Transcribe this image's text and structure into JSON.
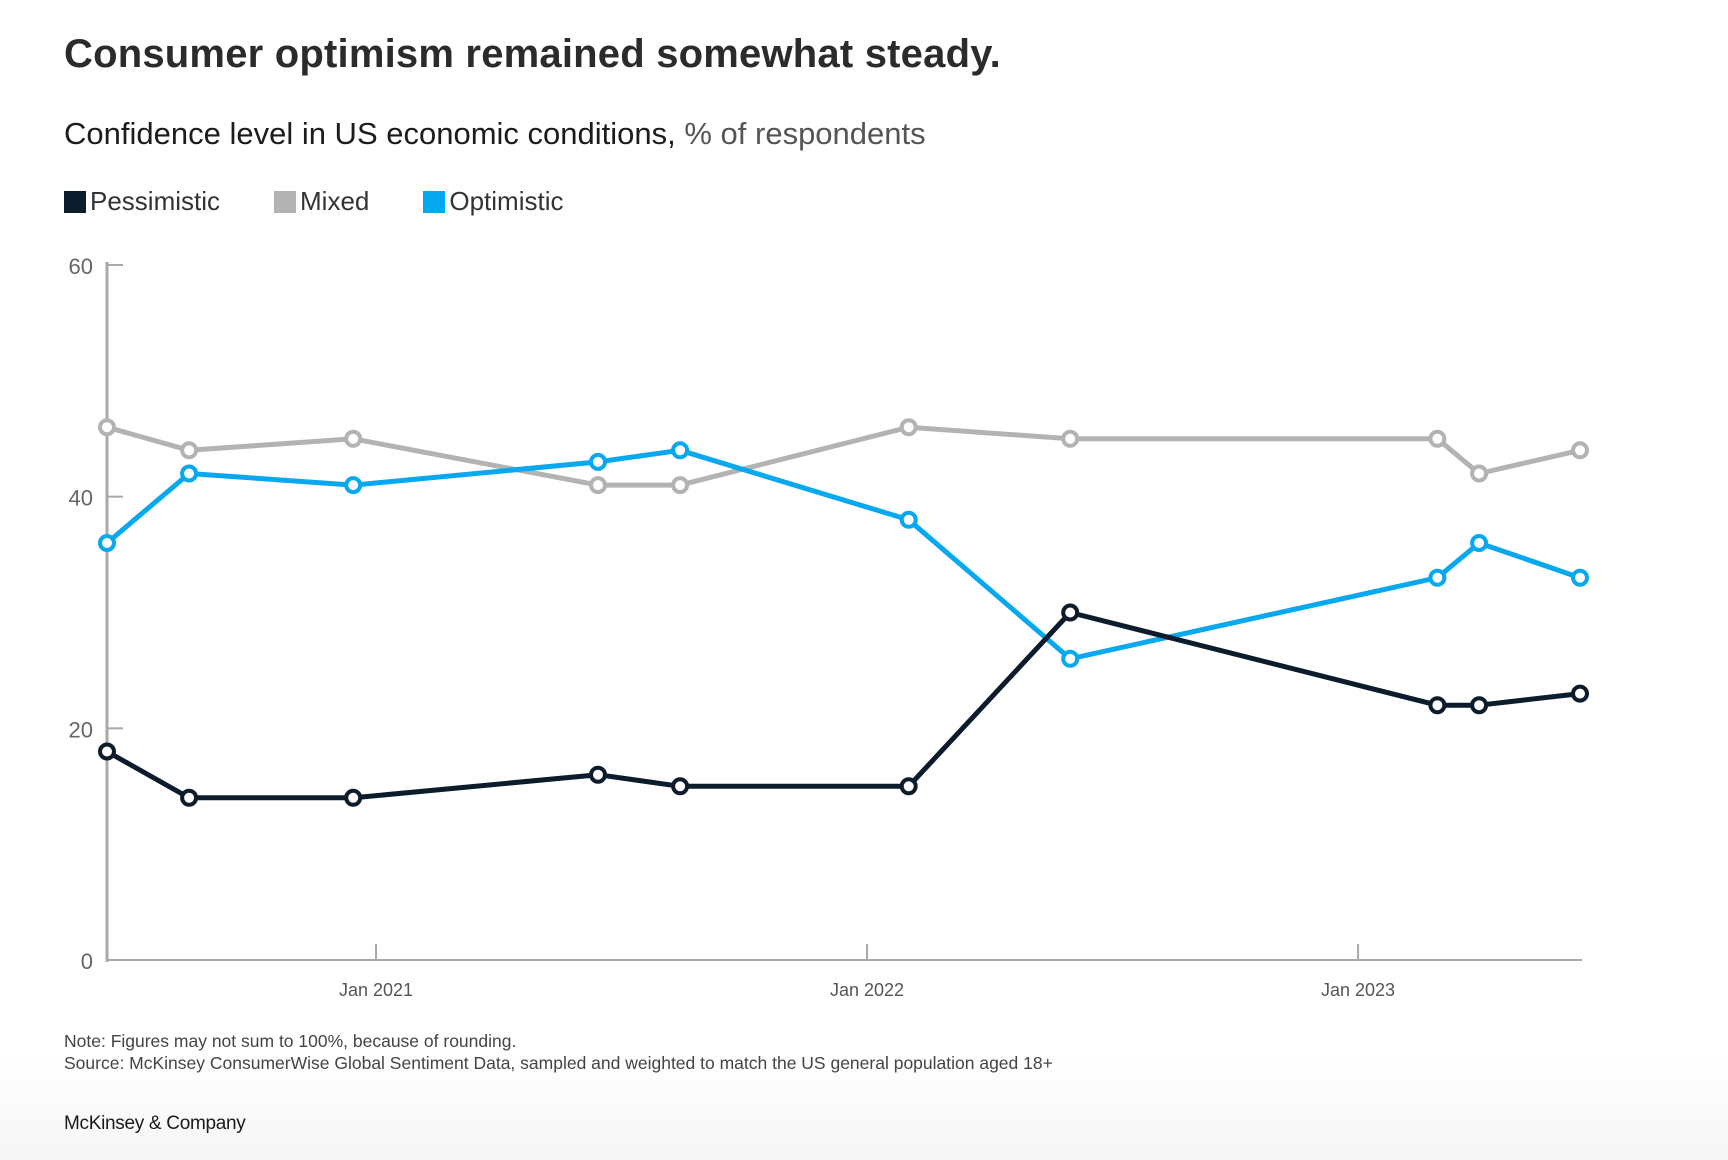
{
  "title": "Consumer optimism remained somewhat steady.",
  "subtitle": {
    "main": "Confidence level in US economic conditions,",
    "unit": "% of respondents"
  },
  "colors": {
    "pessimistic": "#0c1c2c",
    "mixed": "#b3b3b3",
    "optimistic": "#06a8f0",
    "axis": "#a9a9a9"
  },
  "chart_data": {
    "type": "line",
    "ylim": [
      0,
      60
    ],
    "yticks": [
      0,
      20,
      40,
      60
    ],
    "xlim": [
      "2020-06-15",
      "2023-06-15"
    ],
    "xticks": [
      {
        "date": "2021-01-01",
        "label": "Jan 2021"
      },
      {
        "date": "2022-01-01",
        "label": "Jan 2022"
      },
      {
        "date": "2023-01-01",
        "label": "Jan 2023"
      }
    ],
    "grid": false,
    "legend_position": "top-left",
    "x": [
      "2020-06-15",
      "2020-08-15",
      "2020-12-15",
      "2021-06-15",
      "2021-08-15",
      "2022-02-01",
      "2022-06-01",
      "2023-03-01",
      "2023-04-01",
      "2023-06-15"
    ],
    "series": [
      {
        "name": "Pessimistic",
        "color_key": "pessimistic",
        "values": [
          18,
          14,
          14,
          16,
          15,
          15,
          30,
          22,
          22,
          23
        ]
      },
      {
        "name": "Mixed",
        "color_key": "mixed",
        "values": [
          46,
          44,
          45,
          41,
          41,
          46,
          45,
          45,
          42,
          44
        ]
      },
      {
        "name": "Optimistic",
        "color_key": "optimistic",
        "values": [
          36,
          42,
          41,
          43,
          44,
          38,
          26,
          33,
          36,
          33
        ]
      }
    ]
  },
  "notes": {
    "note": "Note: Figures may not sum to 100%, because of rounding.",
    "source": "Source: McKinsey ConsumerWise Global Sentiment Data, sampled and weighted to match the US general population aged 18+"
  },
  "brand": "McKinsey & Company"
}
